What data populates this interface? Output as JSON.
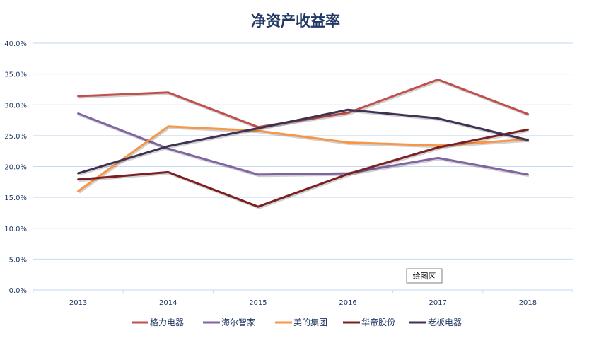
{
  "chart_data": {
    "type": "line",
    "title": "净资产收益率",
    "xlabel": "",
    "ylabel": "",
    "categories": [
      "2013",
      "2014",
      "2015",
      "2016",
      "2017",
      "2018"
    ],
    "ylim": [
      0,
      40
    ],
    "yticks": [
      "0.0%",
      "5.0%",
      "10.0%",
      "15.0%",
      "20.0%",
      "25.0%",
      "30.0%",
      "35.0%",
      "40.0%"
    ],
    "grid": true,
    "legend_position": "bottom",
    "series": [
      {
        "name": "格力电器",
        "color": "#c0504d",
        "values": [
          31.4,
          32.0,
          26.4,
          28.7,
          34.1,
          28.5
        ]
      },
      {
        "name": "海尔智家",
        "color": "#8064a2",
        "values": [
          28.6,
          22.9,
          18.7,
          18.9,
          21.4,
          18.7
        ]
      },
      {
        "name": "美的集团",
        "color": "#f79646",
        "values": [
          16.0,
          26.5,
          25.8,
          23.9,
          23.4,
          24.4
        ]
      },
      {
        "name": "华帝股份",
        "color": "#7b1f22",
        "values": [
          17.9,
          19.1,
          13.5,
          18.8,
          23.1,
          26.0
        ]
      },
      {
        "name": "老板电器",
        "color": "#3f3151",
        "values": [
          18.9,
          23.3,
          26.2,
          29.2,
          27.8,
          24.3
        ]
      }
    ],
    "tooltip": "绘图区"
  }
}
